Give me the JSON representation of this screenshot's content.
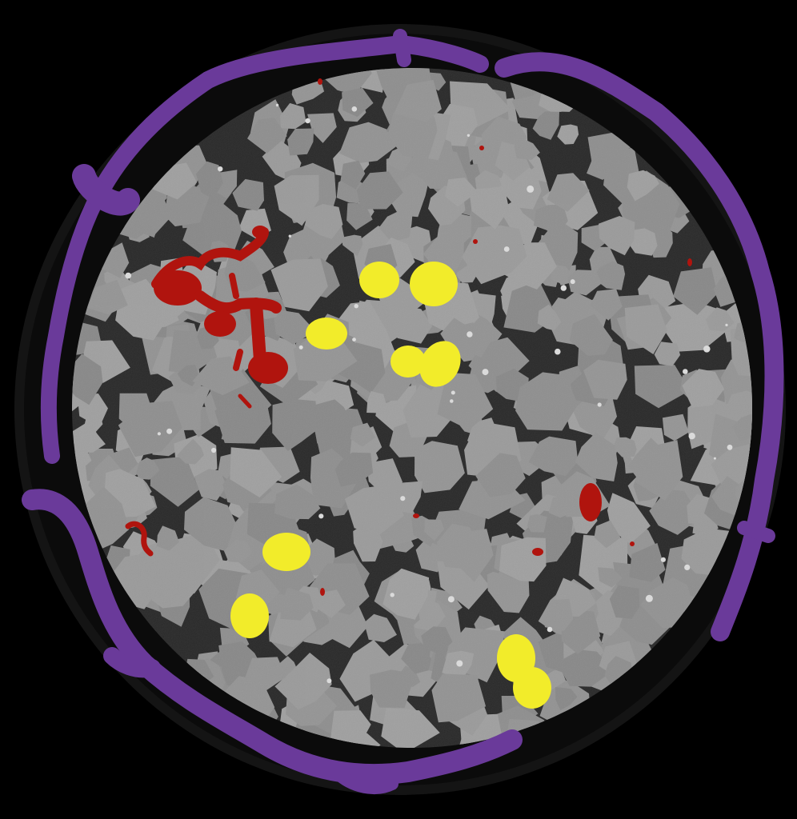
{
  "image": {
    "kind": "micro-CT cross-section of rock core with annotations",
    "colors": {
      "background": "#000000",
      "sleeve": "#1a1a1a",
      "sample_matrix": "#8e8e8e",
      "grain": "#9c9c9c",
      "pore": "#2b2b2b",
      "purple_annotation": "#6a3a9a",
      "red_annotation": "#b0140e",
      "yellow_annotation": "#f2ec2a"
    },
    "annotations": [
      {
        "name": "purple-boundary-trace",
        "color": "purple_annotation"
      },
      {
        "name": "red-mineral-cluster",
        "color": "red_annotation"
      },
      {
        "name": "yellow-grain-markers",
        "color": "yellow_annotation"
      }
    ]
  }
}
